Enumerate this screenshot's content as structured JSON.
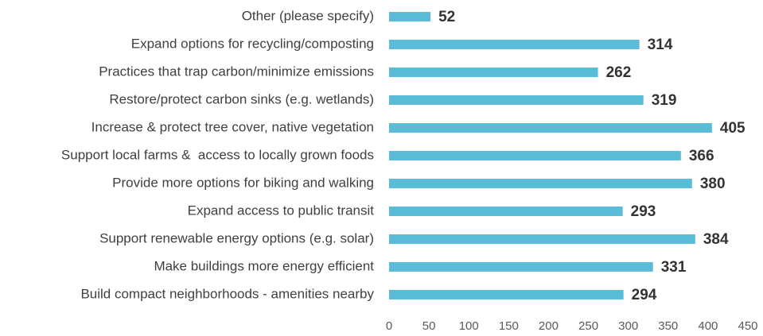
{
  "chart_data": {
    "type": "barh",
    "categories": [
      "Other (please specify)",
      "Expand options for recycling/composting",
      "Practices that trap carbon/minimize emissions",
      "Restore/protect carbon sinks (e.g. wetlands)",
      "Increase & protect tree cover, native vegetation",
      "Support local farms &  access to locally grown foods",
      "Provide more options for biking and walking",
      "Expand access to public transit",
      "Support renewable energy options (e.g. solar)",
      "Make buildings more energy efficient",
      "Build compact neighborhoods - amenities nearby"
    ],
    "values": [
      52,
      314,
      262,
      319,
      405,
      366,
      380,
      293,
      384,
      331,
      294
    ],
    "color": "#5bbcd8",
    "xlim": [
      0,
      450
    ],
    "xticks": [
      0,
      50,
      100,
      150,
      200,
      250,
      300,
      350,
      400,
      450
    ],
    "grid": false
  }
}
